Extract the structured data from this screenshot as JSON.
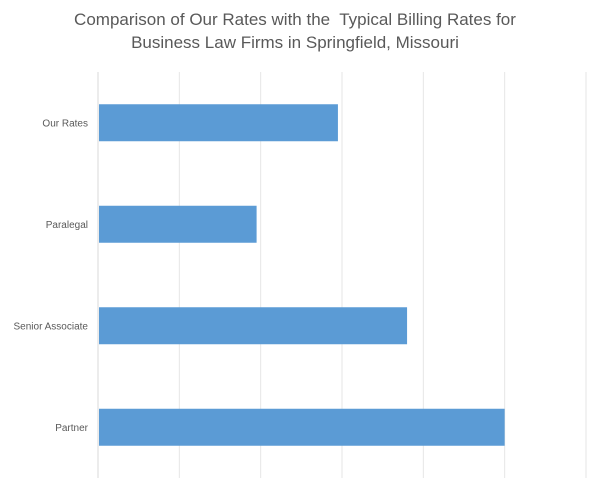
{
  "chart_data": {
    "type": "bar",
    "orientation": "horizontal",
    "title_lines": [
      "Comparison of Our Rates with the  Typical Billing Rates for",
      "Business Law Firms in Springfield, Missouri"
    ],
    "categories": [
      "Our Rates",
      "Paralegal",
      "Senior Associate",
      "Partner"
    ],
    "values": [
      0.59,
      0.39,
      0.76,
      1.0
    ],
    "value_note": "",
    "xlim": [
      0,
      1.2
    ],
    "grid": true,
    "legend": "none",
    "bar_color": "#5B9BD5",
    "grid_color": "#E6E6E6"
  }
}
